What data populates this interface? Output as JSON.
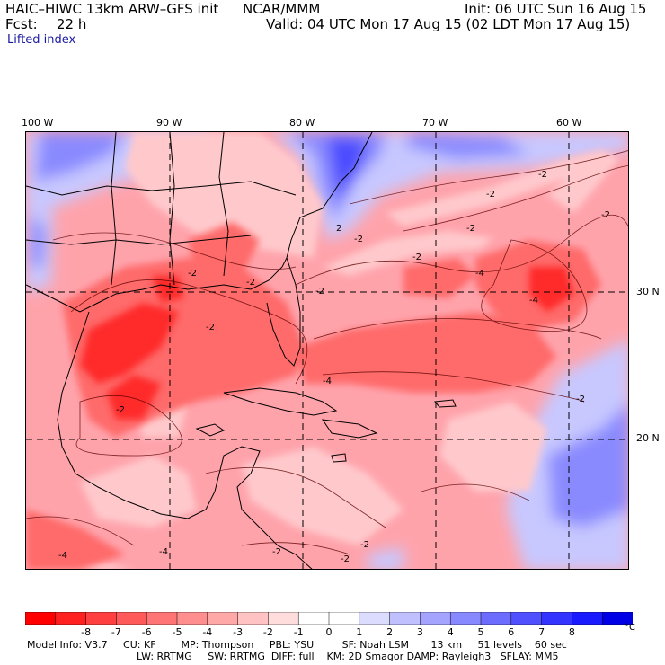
{
  "header": {
    "model": "HAIC–HIWC 13km ARW–GFS init",
    "org": "NCAR/MMM",
    "init": "Init: 06 UTC Sun 16 Aug 15",
    "fcst_label": "Fcst:",
    "fcst_value": "22 h",
    "valid": "Valid: 04 UTC Mon 17 Aug 15 (02 LDT Mon 17 Aug 15)",
    "field": "Lifted index"
  },
  "map": {
    "lon_labels": [
      "100 W",
      "90 W",
      "80 W",
      "70 W",
      "60 W"
    ],
    "lat_labels": [
      "30 N",
      "20 N"
    ],
    "contour_labels": [
      "-2",
      "-2",
      "-2",
      "-2",
      "-2",
      "-2",
      "-2",
      "-2",
      "-2",
      "-2",
      "-2",
      "-2",
      "-4",
      "-4",
      "-4",
      "-2",
      "2",
      "-4",
      "-2",
      "-2",
      "-4"
    ],
    "colors": {
      "ocean_base": "#ffa3ab",
      "strong": "#ff2a2a",
      "moderate": "#ff6a6a",
      "weak": "#ffc9cc",
      "positive_light": "#c8c8ff",
      "positive_mid": "#8a8aff",
      "positive_strong": "#4b4bff"
    }
  },
  "colorbar": {
    "colors": [
      "#ff0000",
      "#ff2020",
      "#ff4040",
      "#ff5a5a",
      "#ff7474",
      "#ff8e8e",
      "#ffa8a8",
      "#ffc3c3",
      "#ffdddd",
      "#ffffff",
      "#ffffff",
      "#dcdcff",
      "#c0c0ff",
      "#a4a4ff",
      "#8888ff",
      "#6c6cff",
      "#5050ff",
      "#3434ff",
      "#1a1aff",
      "#0000e6"
    ],
    "ticks": [
      "-8",
      "-7",
      "-6",
      "-5",
      "-4",
      "-3",
      "-2",
      "-1",
      "0",
      "1",
      "2",
      "3",
      "4",
      "5",
      "6",
      "7",
      "8"
    ],
    "unit": "°C"
  },
  "info": {
    "line1": "Model Info: V3.7     CU: KF        MP: Thompson     PBL: YSU         SF: Noah LSM       13 km     51 levels    60 sec",
    "line2": "LW: RRTMG     SW: RRTMG  DIFF: full    KM: 2D Smagor DAMP: Rayleigh3   SFLAY: MM5"
  }
}
